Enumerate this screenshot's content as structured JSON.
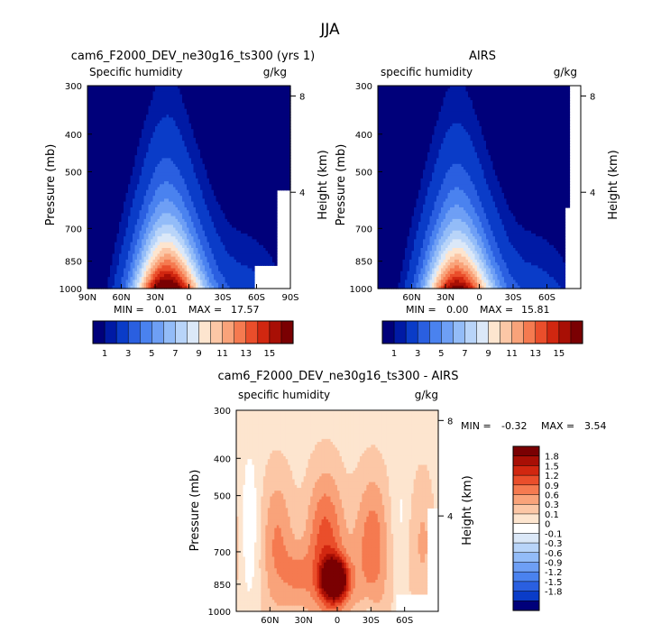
{
  "page_title": "JJA",
  "chart_data": [
    {
      "type": "heatmap",
      "subtype": "latitude-pressure contour",
      "title": "cam6_F2000_DEV_ne30g16_ts300 (yrs 1)",
      "variable_label": "Specific humidity",
      "units": "g/kg",
      "ylabel": "Pressure (mb)",
      "y2label": "Height (km)",
      "x_ticks": [
        "90N",
        "60N",
        "30N",
        "0",
        "30S",
        "60S",
        "90S"
      ],
      "x_tick_values": [
        90,
        60,
        30,
        0,
        -30,
        -60,
        -90
      ],
      "xlim": [
        90,
        -90
      ],
      "y_ticks": [
        "300",
        "400",
        "500",
        "700",
        "850",
        "1000"
      ],
      "y_tick_values": [
        300,
        400,
        500,
        700,
        850,
        1000
      ],
      "ylim": [
        300,
        1000
      ],
      "y2_ticks": [
        "8",
        "4"
      ],
      "y2_tick_values": [
        8,
        4
      ],
      "stats": {
        "min_label": "MIN =",
        "min": "0.01",
        "max_label": "MAX =",
        "max": "17.57"
      },
      "peak_latitude": 20,
      "peak_value": 17.57,
      "colorbar": {
        "orientation": "horizontal",
        "levels": [
          "1",
          "3",
          "5",
          "7",
          "9",
          "11",
          "13",
          "15"
        ],
        "colors": [
          "#00007a",
          "#001aa5",
          "#0a3cc8",
          "#2a5fe0",
          "#4a82ef",
          "#6e9ff5",
          "#93bcf8",
          "#b8d4f9",
          "#dbe8f8",
          "#fde5cf",
          "#fcc7a6",
          "#f9a37a",
          "#f57a50",
          "#ea4e2b",
          "#d12710",
          "#a80f05",
          "#7a0002"
        ]
      }
    },
    {
      "type": "heatmap",
      "subtype": "latitude-pressure contour",
      "title": "AIRS",
      "variable_label": "specific humidity",
      "units": "g/kg",
      "ylabel": "Pressure (mb)",
      "y2label": "Height (km)",
      "x_ticks": [
        "60N",
        "30N",
        "0",
        "30S",
        "60S"
      ],
      "x_tick_values": [
        60,
        30,
        0,
        -30,
        -60
      ],
      "xlim": [
        90,
        -90
      ],
      "y_ticks": [
        "300",
        "400",
        "500",
        "700",
        "850",
        "1000"
      ],
      "y_tick_values": [
        300,
        400,
        500,
        700,
        850,
        1000
      ],
      "ylim": [
        300,
        1000
      ],
      "y2_ticks": [
        "8",
        "4"
      ],
      "y2_tick_values": [
        8,
        4
      ],
      "stats": {
        "min_label": "MIN =",
        "min": "0.00",
        "max_label": "MAX =",
        "max": "15.81"
      },
      "peak_latitude": 20,
      "peak_value": 15.81,
      "colorbar": {
        "orientation": "horizontal",
        "levels": [
          "1",
          "3",
          "5",
          "7",
          "9",
          "11",
          "13",
          "15"
        ],
        "colors": [
          "#00007a",
          "#001aa5",
          "#0a3cc8",
          "#2a5fe0",
          "#4a82ef",
          "#6e9ff5",
          "#93bcf8",
          "#b8d4f9",
          "#dbe8f8",
          "#fde5cf",
          "#fcc7a6",
          "#f9a37a",
          "#f57a50",
          "#ea4e2b",
          "#d12710",
          "#a80f05",
          "#7a0002"
        ]
      }
    },
    {
      "type": "heatmap",
      "subtype": "latitude-pressure contour (difference)",
      "title": "cam6_F2000_DEV_ne30g16_ts300 - AIRS",
      "variable_label": "specific humidity",
      "units": "g/kg",
      "ylabel": "Pressure (mb)",
      "y2label": "Height (km)",
      "x_ticks": [
        "60N",
        "30N",
        "0",
        "30S",
        "60S"
      ],
      "x_tick_values": [
        60,
        30,
        0,
        -30,
        -60
      ],
      "xlim": [
        90,
        -90
      ],
      "y_ticks": [
        "300",
        "400",
        "500",
        "700",
        "850",
        "1000"
      ],
      "y_tick_values": [
        300,
        400,
        500,
        700,
        850,
        1000
      ],
      "ylim": [
        300,
        1000
      ],
      "y2_ticks": [
        "8",
        "4"
      ],
      "y2_tick_values": [
        8,
        4
      ],
      "stats": {
        "min_label": "MIN =",
        "min": "-0.32",
        "max_label": "MAX =",
        "max": "3.54"
      },
      "colorbar": {
        "orientation": "vertical",
        "levels": [
          "1.8",
          "1.5",
          "1.2",
          "0.9",
          "0.6",
          "0.3",
          "0.1",
          "0",
          "-0.1",
          "-0.3",
          "-0.6",
          "-0.9",
          "-1.2",
          "-1.5",
          "-1.8"
        ],
        "colors": [
          "#7a0002",
          "#a80f05",
          "#d12710",
          "#ea4e2b",
          "#f57a50",
          "#f9a37a",
          "#fcc7a6",
          "#fde5cf",
          "#ffffff",
          "#dbe8f8",
          "#b8d4f9",
          "#93bcf8",
          "#6e9ff5",
          "#4a82ef",
          "#2a5fe0",
          "#0a3cc8",
          "#00007a"
        ]
      }
    }
  ]
}
